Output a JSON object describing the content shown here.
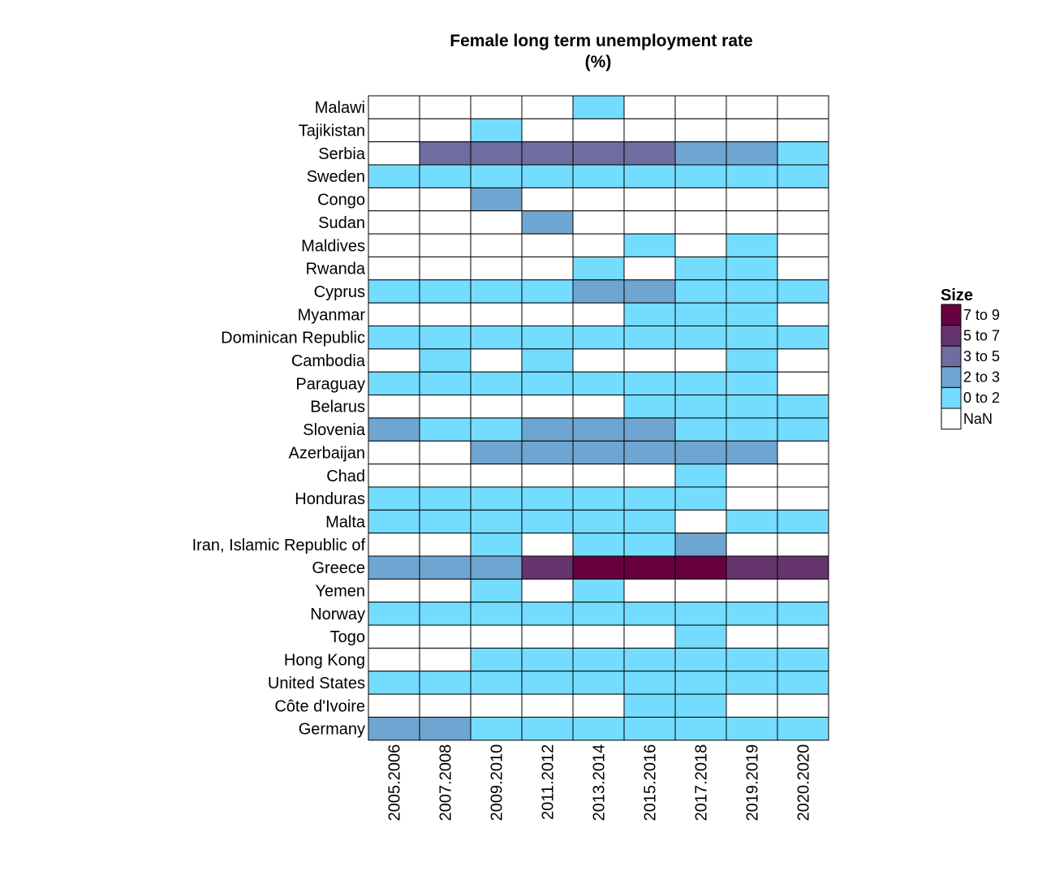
{
  "chart_data": {
    "type": "heatmap",
    "title": "Female long term unemployment rate",
    "subtitle": "(%)",
    "columns": [
      "2005.2006",
      "2007.2008",
      "2009.2010",
      "2011.2012",
      "2013.2014",
      "2015.2016",
      "2017.2018",
      "2019.2019",
      "2020.2020"
    ],
    "rows": [
      "Malawi",
      "Tajikistan",
      "Serbia",
      "Sweden",
      "Congo",
      "Sudan",
      "Maldives",
      "Rwanda",
      "Cyprus",
      "Myanmar",
      "Dominican Republic",
      "Cambodia",
      "Paraguay",
      "Belarus",
      "Slovenia",
      "Azerbaijan",
      "Chad",
      "Honduras",
      "Malta",
      "Iran, Islamic Republic of",
      "Greece",
      "Yemen",
      "Norway",
      "Togo",
      "Hong Kong",
      "United States",
      "Côte d'Ivoire",
      "Germany"
    ],
    "bin_cells": [
      [
        5,
        5,
        5,
        5,
        4,
        5,
        5,
        5,
        5
      ],
      [
        5,
        5,
        4,
        5,
        5,
        5,
        5,
        5,
        5
      ],
      [
        5,
        2,
        2,
        2,
        2,
        2,
        3,
        3,
        4
      ],
      [
        4,
        4,
        4,
        4,
        4,
        4,
        4,
        4,
        4
      ],
      [
        5,
        5,
        3,
        5,
        5,
        5,
        5,
        5,
        5
      ],
      [
        5,
        5,
        5,
        3,
        5,
        5,
        5,
        5,
        5
      ],
      [
        5,
        5,
        5,
        5,
        5,
        4,
        5,
        4,
        5
      ],
      [
        5,
        5,
        5,
        5,
        4,
        5,
        4,
        4,
        5
      ],
      [
        4,
        4,
        4,
        4,
        3,
        3,
        4,
        4,
        4
      ],
      [
        5,
        5,
        5,
        5,
        5,
        4,
        4,
        4,
        5
      ],
      [
        4,
        4,
        4,
        4,
        4,
        4,
        4,
        4,
        4
      ],
      [
        5,
        4,
        5,
        4,
        5,
        5,
        5,
        4,
        5
      ],
      [
        4,
        4,
        4,
        4,
        4,
        4,
        4,
        4,
        5
      ],
      [
        5,
        5,
        5,
        5,
        5,
        4,
        4,
        4,
        4
      ],
      [
        3,
        4,
        4,
        3,
        3,
        3,
        4,
        4,
        4
      ],
      [
        5,
        5,
        3,
        3,
        3,
        3,
        3,
        3,
        5
      ],
      [
        5,
        5,
        5,
        5,
        5,
        5,
        4,
        5,
        5
      ],
      [
        4,
        4,
        4,
        4,
        4,
        4,
        4,
        5,
        5
      ],
      [
        4,
        4,
        4,
        4,
        4,
        4,
        5,
        4,
        4
      ],
      [
        5,
        5,
        4,
        5,
        4,
        4,
        3,
        5,
        5
      ],
      [
        3,
        3,
        3,
        1,
        0,
        0,
        0,
        1,
        1
      ],
      [
        5,
        5,
        4,
        5,
        4,
        5,
        5,
        5,
        5
      ],
      [
        4,
        4,
        4,
        4,
        4,
        4,
        4,
        4,
        4
      ],
      [
        5,
        5,
        5,
        5,
        5,
        5,
        4,
        5,
        5
      ],
      [
        5,
        5,
        4,
        4,
        4,
        4,
        4,
        4,
        4
      ],
      [
        4,
        4,
        4,
        4,
        4,
        4,
        4,
        4,
        4
      ],
      [
        5,
        5,
        5,
        5,
        5,
        4,
        4,
        5,
        5
      ],
      [
        3,
        3,
        4,
        4,
        4,
        4,
        4,
        4,
        4
      ]
    ],
    "legend": {
      "title": "Size",
      "position": "right",
      "bins": [
        {
          "label": "7 to 9",
          "color": "#67003f"
        },
        {
          "label": "5 to 7",
          "color": "#65346c"
        },
        {
          "label": "3 to 5",
          "color": "#6f6c9f"
        },
        {
          "label": "2 to 3",
          "color": "#6fa5d1"
        },
        {
          "label": "0 to 2",
          "color": "#74ddff"
        },
        {
          "label": "NaN",
          "color": "#ffffff"
        }
      ]
    },
    "grid_line_color": "#000000"
  }
}
